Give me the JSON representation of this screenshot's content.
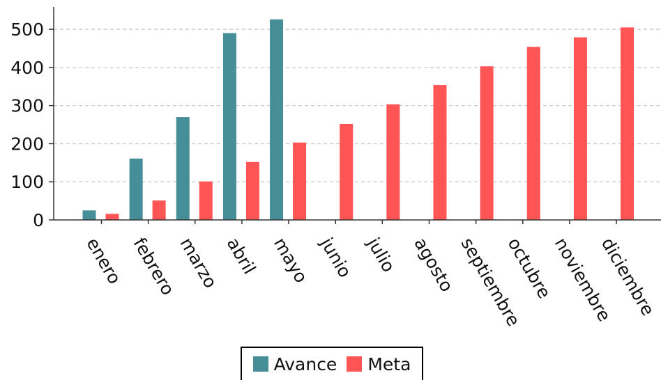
{
  "chart_data": {
    "type": "bar",
    "categories": [
      "enero",
      "febrero",
      "marzo",
      "abril",
      "mayo",
      "junio",
      "julio",
      "agosto",
      "septiembre",
      "octubre",
      "noviembre",
      "diciembre"
    ],
    "series": [
      {
        "name": "Avance",
        "color": "#468e98",
        "values": [
          25,
          161,
          270,
          490,
          526,
          null,
          null,
          null,
          null,
          null,
          null,
          null
        ]
      },
      {
        "name": "Meta",
        "color": "#ff5555",
        "values": [
          16,
          51,
          101,
          152,
          203,
          252,
          303,
          354,
          403,
          454,
          479,
          505
        ]
      }
    ],
    "yticks": [
      0,
      100,
      200,
      300,
      400,
      500
    ],
    "ylim": [
      0,
      555
    ],
    "grid": "y-dashed",
    "legend_position": "bottom-center"
  }
}
